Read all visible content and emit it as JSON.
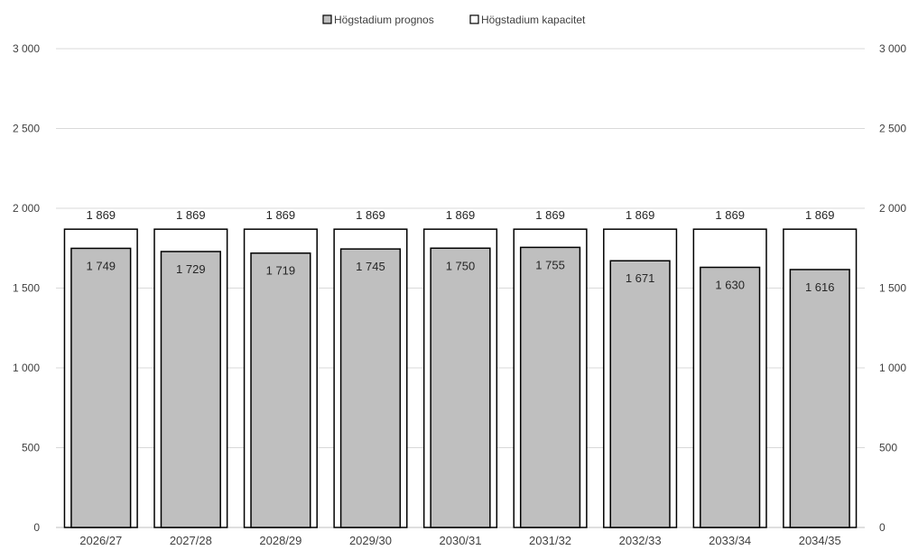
{
  "chart_data": {
    "type": "bar",
    "categories": [
      "2026/27",
      "2027/28",
      "2028/29",
      "2029/30",
      "2030/31",
      "2031/32",
      "2032/33",
      "2033/34",
      "2034/35"
    ],
    "series": [
      {
        "name": "Högstadium prognos",
        "values": [
          1749,
          1729,
          1719,
          1745,
          1750,
          1755,
          1671,
          1630,
          1616
        ],
        "color": "#bfbfbf",
        "labels": [
          "1 749",
          "1 729",
          "1 719",
          "1 745",
          "1 750",
          "1 755",
          "1 671",
          "1 630",
          "1 616"
        ]
      },
      {
        "name": "Högstadium kapacitet",
        "values": [
          1869,
          1869,
          1869,
          1869,
          1869,
          1869,
          1869,
          1869,
          1869
        ],
        "color": "#ffffff",
        "labels": [
          "1 869",
          "1 869",
          "1 869",
          "1 869",
          "1 869",
          "1 869",
          "1 869",
          "1 869",
          "1 869"
        ]
      }
    ],
    "ylim": [
      0,
      3000
    ],
    "yticks": [
      0,
      500,
      1000,
      1500,
      2000,
      2500,
      3000
    ],
    "ytick_labels": [
      "0",
      "500",
      "1 000",
      "1 500",
      "2 000",
      "2 500",
      "3 000"
    ],
    "secondary_axis": true,
    "grid": true,
    "legend": "top-center",
    "xlabel": "",
    "ylabel": ""
  }
}
